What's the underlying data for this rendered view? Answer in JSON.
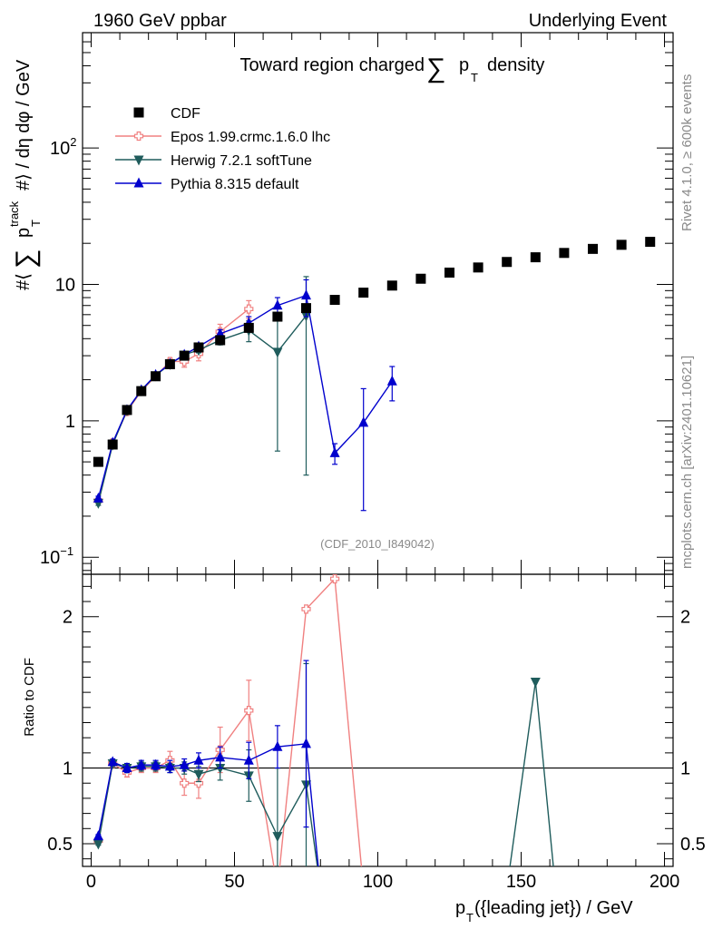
{
  "header": {
    "left": "1960 GeV ppbar",
    "right": "Underlying Event"
  },
  "side": {
    "rivet": "Rivet 4.1.0, ≥ 600k events",
    "mcplots": "mcplots.cern.ch [arXiv:2401.10621]"
  },
  "chart_data": {
    "type": "scatter",
    "title": {
      "pre": "Toward region charged",
      "sigma": "∑",
      "p": "p",
      "sub": "T",
      "post": "density"
    },
    "ylabel": "#⟨ ∑ p_T^track #⟩ / dη dφ / GeV",
    "ylabel_parts": {
      "hash1": "#⟨",
      "sigma": "∑",
      "p": "p",
      "sup": "track",
      "sub": "T",
      "rest": "#⟩ / dη dφ / GeV"
    },
    "ratio_ylabel": "Ratio to CDF",
    "xlabel": "p_T({leading jet}) / GeV",
    "xlabel_parts": {
      "p": "p",
      "sub": "T",
      "rest": "({leading jet}) / GeV"
    },
    "xlim": [
      -3,
      203
    ],
    "ylim": [
      0.075,
      700
    ],
    "ratio_ylim": [
      0.35,
      2.28
    ],
    "main_y_ticks": [
      {
        "value": 0.1,
        "base": "10",
        "exp": "−1"
      },
      {
        "value": 1,
        "base": "1",
        "exp": ""
      },
      {
        "value": 10,
        "base": "10",
        "exp": ""
      },
      {
        "value": 100,
        "base": "10",
        "exp": "2"
      }
    ],
    "ratio_y_ticks": [
      {
        "value": 0.5,
        "label": "0.5"
      },
      {
        "value": 1,
        "label": "1"
      },
      {
        "value": 2,
        "label": "2"
      }
    ],
    "x_ticks": [
      0,
      50,
      100,
      150,
      200
    ],
    "watermark": "(CDF_2010_I849042)",
    "series": [
      {
        "name": "CDF",
        "color": "#000000",
        "marker": "square",
        "line": false,
        "x": [
          2.5,
          7.5,
          12.5,
          17.5,
          22.5,
          27.5,
          32.5,
          37.5,
          45,
          55,
          65,
          75,
          85,
          95,
          105,
          115,
          125,
          135,
          145,
          155,
          165,
          175,
          185,
          195
        ],
        "y": [
          0.5,
          0.67,
          1.2,
          1.65,
          2.12,
          2.6,
          3.0,
          3.45,
          3.9,
          4.8,
          5.8,
          6.7,
          7.7,
          8.7,
          9.8,
          11.0,
          12.2,
          13.3,
          14.6,
          15.8,
          17.0,
          18.2,
          19.5,
          20.5
        ]
      },
      {
        "name": "Epos 1.99.crmc.1.6.0 lhc",
        "color": "#f08080",
        "marker": "open-cross",
        "line": true,
        "x": [
          2.5,
          7.5,
          12.5,
          17.5,
          22.5,
          27.5,
          32.5,
          37.5,
          45,
          55
        ],
        "y": [
          0.26,
          0.69,
          1.17,
          1.65,
          2.12,
          2.72,
          2.72,
          3.1,
          4.5,
          6.6
        ],
        "err": [
          0.01,
          0.02,
          0.04,
          0.05,
          0.07,
          0.15,
          0.25,
          0.35,
          0.6,
          1.0
        ],
        "ratio_x": [
          2.5,
          7.5,
          12.5,
          17.5,
          22.5,
          27.5,
          32.5,
          37.5,
          45,
          55,
          65,
          75,
          85,
          95
        ],
        "ratio_y": [
          0.52,
          1.03,
          0.97,
          1.0,
          1.0,
          1.05,
          0.9,
          0.9,
          1.12,
          1.38,
          0.2,
          2.05,
          2.25,
          0.2
        ],
        "ratio_err": [
          0.01,
          0.02,
          0.03,
          0.03,
          0.03,
          0.06,
          0.08,
          0.1,
          0.15,
          0.2,
          0,
          0,
          0,
          0
        ]
      },
      {
        "name": "Herwig 7.2.1 softTune",
        "color": "#1f5c5c",
        "marker": "triangle-down",
        "line": true,
        "x": [
          2.5,
          7.5,
          12.5,
          17.5,
          22.5,
          27.5,
          32.5,
          37.5,
          45,
          55,
          65,
          75
        ],
        "y": [
          0.25,
          0.67,
          1.19,
          1.67,
          2.15,
          2.6,
          3.05,
          3.3,
          3.9,
          4.6,
          3.2,
          5.9
        ],
        "err": [
          0.01,
          0.02,
          0.04,
          0.05,
          0.07,
          0.1,
          0.12,
          0.15,
          0.3,
          0.8,
          2.6,
          5.5
        ],
        "ratio_x": [
          2.5,
          7.5,
          12.5,
          17.5,
          22.5,
          27.5,
          32.5,
          37.5,
          45,
          55,
          65,
          75,
          80,
          145,
          155,
          162
        ],
        "ratio_y": [
          0.5,
          1.03,
          1.0,
          1.01,
          1.01,
          1.0,
          1.0,
          0.96,
          1.0,
          0.95,
          0.55,
          0.89,
          0.2,
          0.2,
          1.57,
          0.2
        ],
        "ratio_err": [
          0.01,
          0.02,
          0.03,
          0.03,
          0.03,
          0.03,
          0.04,
          0.05,
          0.08,
          0.17,
          0.45,
          0.8,
          0,
          0,
          0,
          0
        ]
      },
      {
        "name": "Pythia 8.315 default",
        "color": "#0000cd",
        "marker": "triangle-up",
        "line": true,
        "x": [
          2.5,
          7.5,
          12.5,
          17.5,
          22.5,
          27.5,
          32.5,
          37.5,
          45,
          55,
          65,
          75,
          85,
          95,
          105
        ],
        "y": [
          0.27,
          0.69,
          1.2,
          1.68,
          2.17,
          2.62,
          3.05,
          3.5,
          4.35,
          5.2,
          7.0,
          8.3,
          0.58,
          0.97,
          1.95
        ],
        "err": [
          0.01,
          0.02,
          0.04,
          0.05,
          0.07,
          0.1,
          0.12,
          0.15,
          0.3,
          0.6,
          1.0,
          2.5,
          0.1,
          0.75,
          0.55
        ],
        "ratio_x": [
          2.5,
          7.5,
          12.5,
          17.5,
          22.5,
          27.5,
          32.5,
          37.5,
          45,
          55,
          65,
          75,
          80
        ],
        "ratio_y": [
          0.55,
          1.04,
          1.0,
          1.02,
          1.02,
          1.01,
          1.02,
          1.05,
          1.07,
          1.05,
          1.14,
          1.16,
          0.2
        ],
        "ratio_err": [
          0.01,
          0.02,
          0.03,
          0.03,
          0.03,
          0.04,
          0.04,
          0.05,
          0.07,
          0.12,
          0.14,
          0.55,
          0
        ]
      }
    ]
  }
}
